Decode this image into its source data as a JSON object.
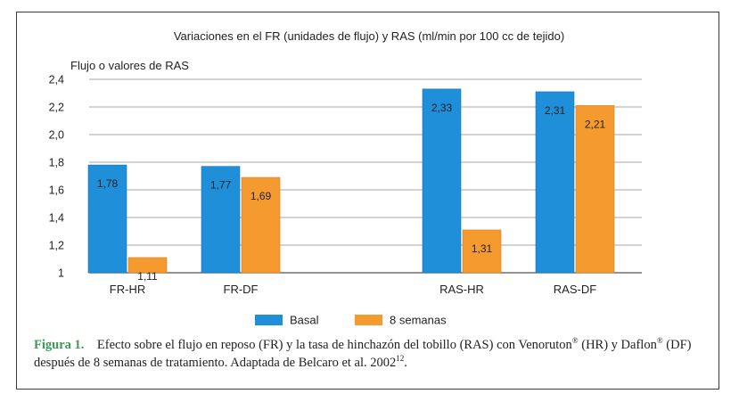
{
  "chart_data": {
    "type": "bar",
    "title": "Variaciones en el FR (unidades de flujo) y RAS (ml/min por 100 cc de tejido)",
    "ylabel": "Flujo o valores de RAS",
    "ylim": [
      1,
      2.4
    ],
    "yticks": [
      "1",
      "1,2",
      "1,4",
      "1,6",
      "1,8",
      "2,0",
      "2,2",
      "2,4"
    ],
    "categories": [
      "FR-HR",
      "FR-DF",
      "RAS-HR",
      "RAS-DF"
    ],
    "series": [
      {
        "name": "Basal",
        "color": "#1f8fd9",
        "values": [
          1.78,
          1.77,
          2.33,
          2.31
        ],
        "labels": [
          "1,78",
          "1,77",
          "2,33",
          "2,31"
        ]
      },
      {
        "name": "8 semanas",
        "color": "#f59a2f",
        "values": [
          1.11,
          1.69,
          1.31,
          2.21
        ],
        "labels": [
          "1,11",
          "1,69",
          "1,31",
          "2,21"
        ]
      }
    ],
    "grid": true,
    "legend": "bottom-center"
  },
  "caption": {
    "figure_label": "Figura 1.",
    "text_1": "Efecto sobre el flujo en reposo (FR) y la tasa de hinchazón del tobillo (RAS) con Venoruton",
    "reg_1": "®",
    "text_2": " (HR) y Daflon",
    "reg_2": "®",
    "text_3": " (DF)",
    "text_4": "después de 8 semanas de tratamiento. Adaptada de Belcaro et al. 2002",
    "ref": "12",
    "text_5": "."
  }
}
